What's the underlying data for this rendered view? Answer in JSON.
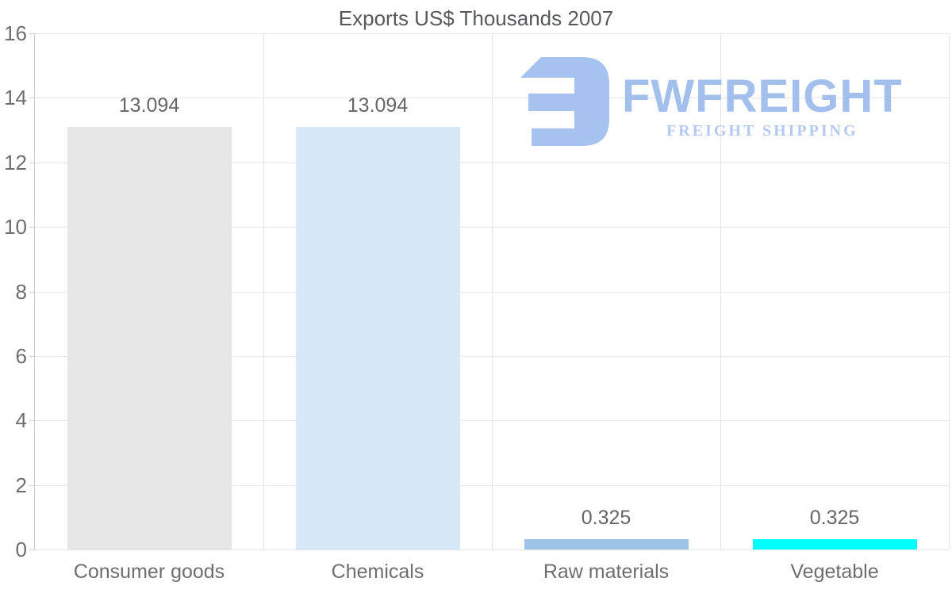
{
  "header": {
    "title": "Exports US$ Thousands 2007"
  },
  "watermark": {
    "brand": "FWFREIGHT",
    "tagline": "FREIGHT SHIPPING",
    "brand_color": "#a3bfec",
    "tagline_color": "#b4c9f1",
    "icon_color": "#a6c2ee"
  },
  "chart_data": {
    "type": "bar",
    "title": "Exports US$ Thousands 2007",
    "categories": [
      "Consumer goods",
      "Chemicals",
      "Raw materials",
      "Vegetable"
    ],
    "values": [
      13.094,
      13.094,
      0.325,
      0.325
    ],
    "value_labels": [
      "13.094",
      "13.094",
      "0.325",
      "0.325"
    ],
    "bar_colors": [
      "#e6e6e6",
      "#d7e8f8",
      "#9dc3e6",
      "#00ffff"
    ],
    "xlabel": "",
    "ylabel": "",
    "ylim": [
      0,
      16
    ],
    "yticks": [
      0,
      2,
      4,
      6,
      8,
      10,
      12,
      14,
      16
    ],
    "grid": true,
    "legend": false,
    "grid_color": "#e6e6e6",
    "axis_color": "#cccccc",
    "tick_label_color": "#6e6e6e",
    "value_label_color": "#666666",
    "title_color": "#58595b"
  }
}
